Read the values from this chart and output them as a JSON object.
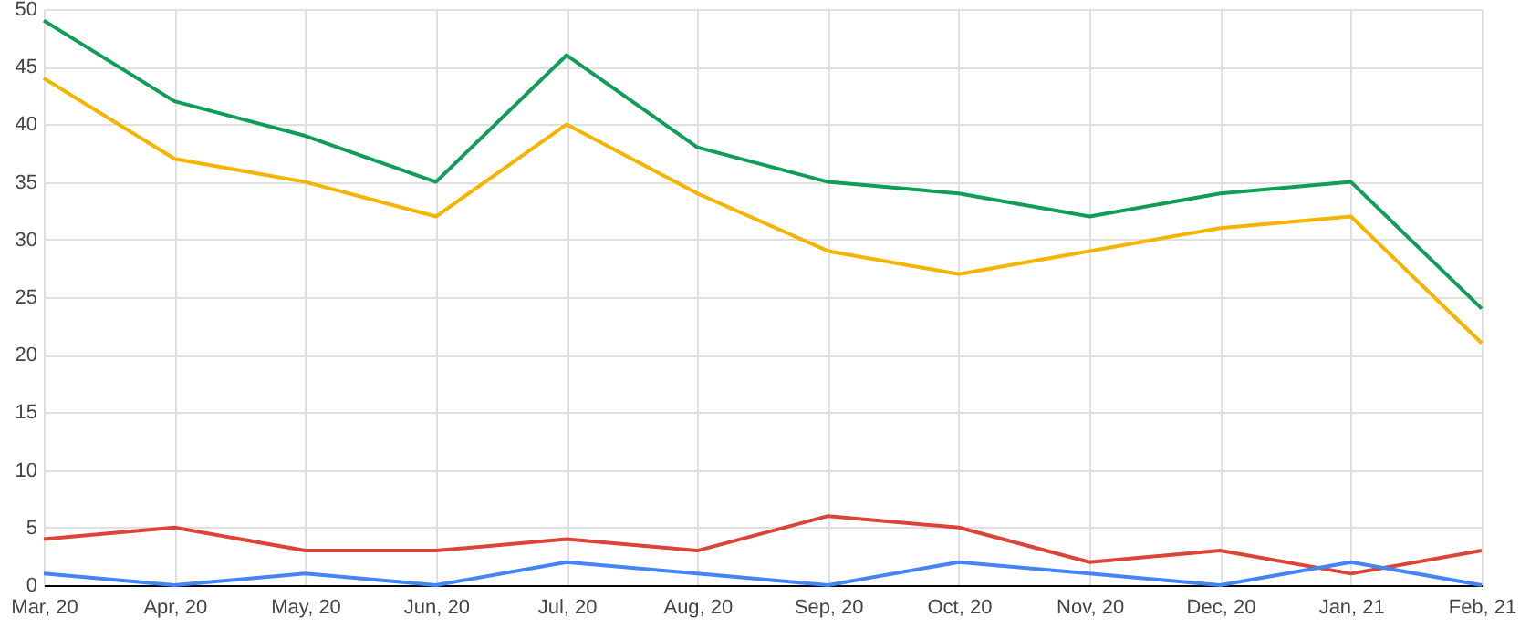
{
  "chart_data": {
    "type": "line",
    "categories": [
      "Mar, 20",
      "Apr, 20",
      "May, 20",
      "Jun, 20",
      "Jul, 20",
      "Aug, 20",
      "Sep, 20",
      "Oct, 20",
      "Nov, 20",
      "Dec, 20",
      "Jan, 21",
      "Feb, 21"
    ],
    "series": [
      {
        "color": "#0f9d58",
        "values": [
          49,
          42,
          39,
          35,
          46,
          38,
          35,
          34,
          32,
          34,
          35,
          24
        ]
      },
      {
        "color": "#f4b400",
        "values": [
          44,
          37,
          35,
          32,
          40,
          34,
          29,
          27,
          29,
          31,
          32,
          21
        ]
      },
      {
        "color": "#db4437",
        "values": [
          4,
          5,
          3,
          3,
          4,
          3,
          6,
          5,
          2,
          3,
          1,
          3
        ]
      },
      {
        "color": "#4285f4",
        "values": [
          1,
          0,
          1,
          0,
          2,
          1,
          0,
          2,
          1,
          0,
          2,
          0
        ]
      }
    ],
    "ylim": [
      0,
      50
    ],
    "yticks": [
      0,
      5,
      10,
      15,
      20,
      25,
      30,
      35,
      40,
      45,
      50
    ],
    "grid": true,
    "marker": "none",
    "line_style": "solid"
  }
}
